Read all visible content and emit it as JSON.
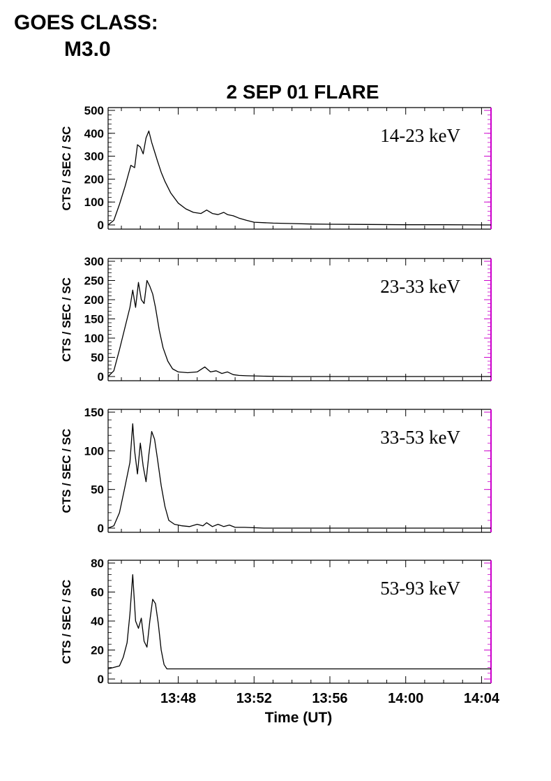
{
  "header": {
    "goes_label": "GOES CLASS:",
    "goes_value": "M3.0"
  },
  "chart_data": {
    "type": "line",
    "title": "2 SEP 01 FLARE",
    "xlabel": "Time (UT)",
    "ylabel": "CTS / SEC / SC",
    "x_tick_labels": [
      "13:48",
      "13:52",
      "13:56",
      "14:00",
      "14:04"
    ],
    "x_unit": "minutes after 13:00 UT",
    "x_ticks": [
      48,
      52,
      56,
      60,
      64
    ],
    "xlim": [
      44.3,
      64.5
    ],
    "colors": {
      "line": "#000000",
      "right_axis": "#cc00cc"
    },
    "panels": [
      {
        "name": "14-23 keV",
        "ylim": [
          0,
          500
        ],
        "yticks": [
          0,
          100,
          200,
          300,
          400,
          500
        ],
        "x": [
          44.3,
          44.6,
          44.9,
          45.2,
          45.5,
          45.7,
          45.85,
          46.0,
          46.15,
          46.3,
          46.45,
          46.6,
          46.75,
          46.9,
          47.1,
          47.3,
          47.6,
          48.0,
          48.4,
          48.8,
          49.2,
          49.5,
          49.8,
          50.1,
          50.4,
          50.6,
          50.9,
          51.2,
          51.6,
          52.0,
          53.0,
          54.0,
          55.0,
          56.0,
          58.0,
          60.0,
          62.0,
          64.5
        ],
        "y": [
          0,
          20,
          90,
          170,
          260,
          250,
          350,
          340,
          310,
          380,
          410,
          360,
          320,
          280,
          230,
          190,
          140,
          95,
          70,
          55,
          50,
          65,
          50,
          45,
          55,
          45,
          40,
          30,
          20,
          12,
          8,
          6,
          4,
          3,
          2,
          1,
          1,
          0
        ]
      },
      {
        "name": "23-33 keV",
        "ylim": [
          0,
          300
        ],
        "yticks": [
          0,
          50,
          100,
          150,
          200,
          250,
          300
        ],
        "x": [
          44.3,
          44.6,
          44.9,
          45.2,
          45.45,
          45.6,
          45.75,
          45.9,
          46.05,
          46.2,
          46.35,
          46.5,
          46.65,
          46.8,
          47.0,
          47.2,
          47.45,
          47.7,
          48.0,
          48.5,
          49.0,
          49.4,
          49.7,
          50.0,
          50.3,
          50.6,
          50.9,
          51.2,
          51.6,
          52.5,
          54.0,
          56.0,
          58.0,
          60.0,
          62.0,
          64.5
        ],
        "y": [
          0,
          15,
          70,
          130,
          180,
          225,
          180,
          245,
          200,
          190,
          250,
          235,
          215,
          180,
          120,
          75,
          40,
          20,
          12,
          10,
          12,
          25,
          12,
          15,
          8,
          12,
          5,
          3,
          2,
          1,
          0,
          0,
          0,
          0,
          0,
          0
        ]
      },
      {
        "name": "33-53 keV",
        "ylim": [
          0,
          150
        ],
        "yticks": [
          0,
          50,
          100,
          150
        ],
        "x": [
          44.3,
          44.6,
          44.9,
          45.2,
          45.45,
          45.6,
          45.7,
          45.85,
          46.0,
          46.15,
          46.3,
          46.45,
          46.6,
          46.75,
          46.9,
          47.1,
          47.3,
          47.5,
          47.8,
          48.2,
          48.6,
          49.0,
          49.3,
          49.5,
          49.8,
          50.1,
          50.4,
          50.7,
          51.0,
          51.5,
          52.5,
          54.0,
          56.0,
          58.0,
          60.0,
          62.0,
          64.5
        ],
        "y": [
          0,
          3,
          20,
          55,
          85,
          135,
          100,
          70,
          110,
          80,
          60,
          95,
          125,
          115,
          90,
          55,
          28,
          10,
          5,
          3,
          2,
          5,
          3,
          7,
          2,
          5,
          2,
          4,
          1,
          1,
          0,
          0,
          0,
          0,
          0,
          0,
          0
        ]
      },
      {
        "name": "53-93 keV",
        "ylim": [
          0,
          80
        ],
        "yticks": [
          0,
          20,
          40,
          60,
          80
        ],
        "x": [
          44.3,
          44.6,
          44.9,
          45.1,
          45.3,
          45.45,
          45.6,
          45.75,
          45.9,
          46.05,
          46.2,
          46.35,
          46.5,
          46.65,
          46.8,
          46.95,
          47.1,
          47.25,
          47.4,
          47.6,
          48.0,
          48.5,
          49.0,
          50.0,
          51.0,
          52.0,
          53.0,
          54.0,
          54.8,
          56.0,
          58.0,
          60.0,
          62.0,
          64.5
        ],
        "y": [
          7,
          8,
          9,
          15,
          25,
          45,
          72,
          40,
          35,
          42,
          26,
          22,
          40,
          55,
          52,
          38,
          20,
          10,
          7,
          7,
          7,
          7,
          7,
          7,
          7,
          7,
          7,
          7,
          7,
          7,
          7,
          7,
          7,
          7
        ]
      }
    ]
  }
}
